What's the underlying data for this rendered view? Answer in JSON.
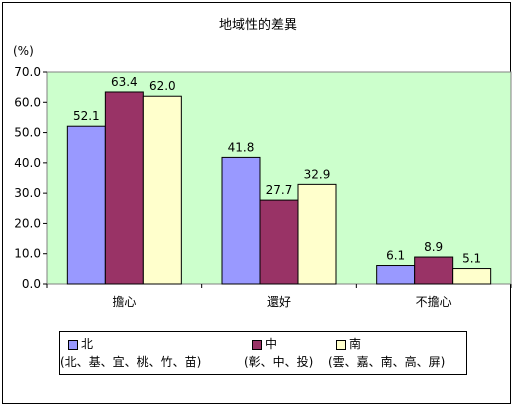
{
  "chart_data": {
    "type": "bar",
    "title": "地域性的差異",
    "ylabel": "(%)",
    "ylim": [
      0,
      70
    ],
    "yticks": [
      "0.0",
      "10.0",
      "20.0",
      "30.0",
      "40.0",
      "50.0",
      "60.0",
      "70.0"
    ],
    "categories": [
      "擔心",
      "還好",
      "不擔心"
    ],
    "series": [
      {
        "name": "北",
        "sub": "(北、基、宜、桃、竹、苗)",
        "color": "#9999ff",
        "values": [
          52.1,
          41.8,
          6.1
        ],
        "labels": [
          "52.1",
          "41.8",
          "6.1"
        ]
      },
      {
        "name": "中",
        "sub": "(彰、中、投)",
        "color": "#993366",
        "values": [
          63.4,
          27.7,
          8.9
        ],
        "labels": [
          "63.4",
          "27.7",
          "8.9"
        ]
      },
      {
        "name": "南",
        "sub": "(雲、嘉、南、高、屏)",
        "color": "#ffffcc",
        "values": [
          62.0,
          32.9,
          5.1
        ],
        "labels": [
          "62.0",
          "32.9",
          "5.1"
        ]
      }
    ],
    "plot_background": "#ccffcc",
    "grid": false,
    "legend_position": "bottom"
  }
}
